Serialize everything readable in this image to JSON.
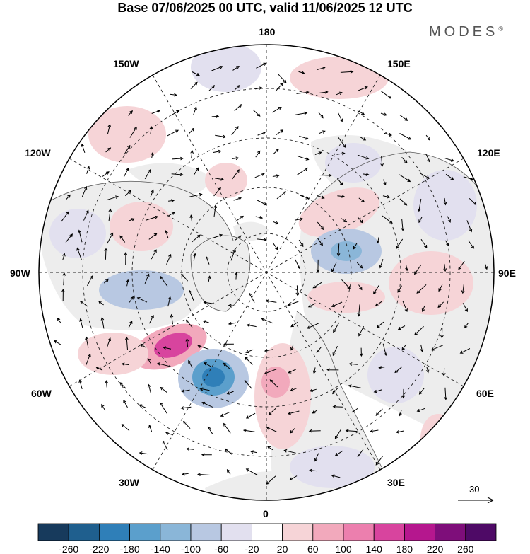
{
  "header": {
    "title": "Base 07/06/2025 00 UTC, valid 11/06/2025 12 UTC",
    "brand": "MODES",
    "brand_mark": "®"
  },
  "map": {
    "projection": "north polar stereographic",
    "longitude_labels": {
      "top": "180",
      "bottom": "0",
      "left": "90W",
      "right": "90E",
      "upper_left_1": "150W",
      "upper_left_2": "120W",
      "upper_right_1": "150E",
      "upper_right_2": "120E",
      "lower_left_1": "60W",
      "lower_left_2": "30W",
      "lower_right_1": "60E",
      "lower_right_2": "30E"
    },
    "reference_vector_label": "30",
    "colors": {
      "land": "#ededed",
      "ocean": "#ffffff",
      "coast": "#555555"
    }
  },
  "colorbar": {
    "ticks": [
      "-260",
      "-220",
      "-180",
      "-140",
      "-100",
      "-60",
      "-20",
      "20",
      "60",
      "100",
      "140",
      "180",
      "220",
      "260"
    ],
    "colors": [
      "#173a5c",
      "#1f5f8e",
      "#2f7fb8",
      "#5b9fcc",
      "#8ab6d8",
      "#b8c8e2",
      "#e2e0ef",
      "#ffffff",
      "#f6d4d7",
      "#f2a9bc",
      "#ec7fae",
      "#d8449e",
      "#b5178e",
      "#7e0e7a",
      "#4e0a66"
    ]
  }
}
